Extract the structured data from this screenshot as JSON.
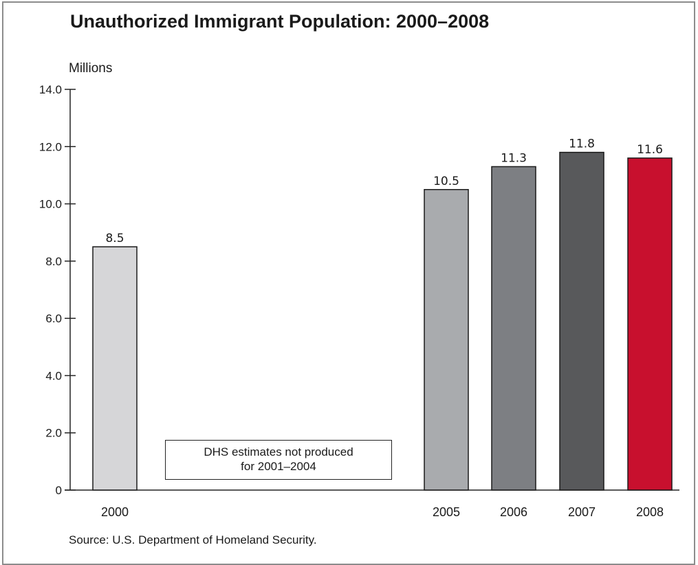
{
  "chart_data": {
    "type": "bar",
    "title": "Unauthorized Immigrant Population: 2000–2008",
    "ylabel": "Millions",
    "xlabel": "",
    "categories": [
      "2000",
      "2005",
      "2006",
      "2007",
      "2008"
    ],
    "values": [
      8.5,
      10.5,
      11.3,
      11.8,
      11.6
    ],
    "value_labels": [
      "8.5",
      "10.5",
      "11.3",
      "11.8",
      "11.6"
    ],
    "bar_colors": [
      "#d6d6d8",
      "#a9abae",
      "#7d7f83",
      "#58595b",
      "#c8102e"
    ],
    "ylim": [
      0,
      14
    ],
    "yticks": [
      0,
      2,
      4,
      6,
      8,
      10,
      12,
      14
    ],
    "ytick_labels": [
      "0",
      "2.0",
      "4.0",
      "6.0",
      "8.0",
      "10.0",
      "12.0",
      "14.0"
    ],
    "grid": false,
    "legend": "none",
    "annotation": [
      "DHS estimates not produced",
      "for 2001–2004"
    ],
    "source": "Source: U.S. Department of Homeland Security."
  }
}
